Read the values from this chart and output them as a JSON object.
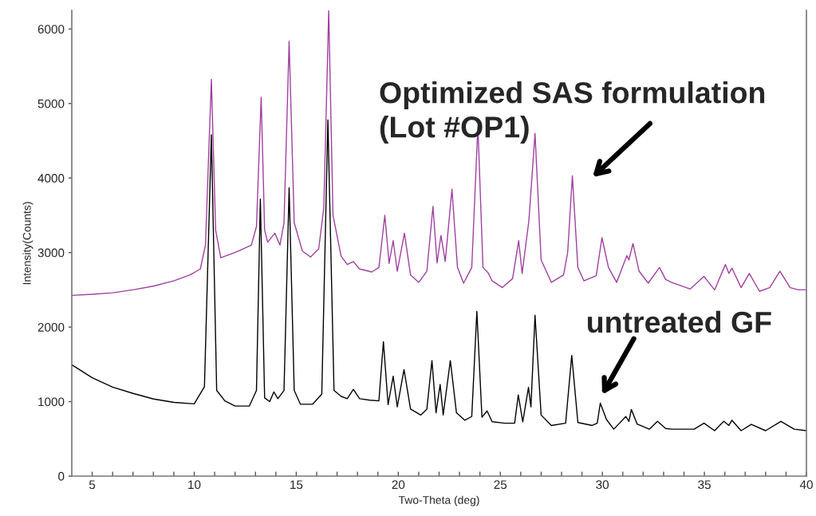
{
  "chart_data": {
    "type": "line",
    "xlabel": "Two-Theta (deg)",
    "ylabel": "Intensity(Counts)",
    "xlim": [
      4,
      40
    ],
    "ylim": [
      0,
      6250
    ],
    "xticks": [
      5,
      {
        "value": 6,
        "label": null
      },
      {
        "value": 7,
        "label": null
      },
      {
        "value": 8,
        "label": null
      },
      {
        "value": 9,
        "label": null
      },
      10,
      {
        "value": 11,
        "label": null
      },
      {
        "value": 12,
        "label": null
      },
      {
        "value": 13,
        "label": null
      },
      {
        "value": 14,
        "label": null
      },
      15,
      {
        "value": 16,
        "label": null
      },
      {
        "value": 17,
        "label": null
      },
      {
        "value": 18,
        "label": null
      },
      {
        "value": 19,
        "label": null
      },
      20,
      {
        "value": 21,
        "label": null
      },
      {
        "value": 22,
        "label": null
      },
      {
        "value": 23,
        "label": null
      },
      {
        "value": 24,
        "label": null
      },
      25,
      {
        "value": 26,
        "label": null
      },
      {
        "value": 27,
        "label": null
      },
      {
        "value": 28,
        "label": null
      },
      {
        "value": 29,
        "label": null
      },
      30,
      {
        "value": 31,
        "label": null
      },
      {
        "value": 32,
        "label": null
      },
      {
        "value": 33,
        "label": null
      },
      {
        "value": 34,
        "label": null
      },
      35,
      {
        "value": 36,
        "label": null
      },
      {
        "value": 37,
        "label": null
      },
      {
        "value": 38,
        "label": null
      },
      {
        "value": 39,
        "label": null
      },
      40
    ],
    "yticks": [
      0,
      1000,
      2000,
      3000,
      4000,
      5000,
      6000
    ],
    "series": [
      {
        "color": "#a040a0",
        "x": [
          4,
          5,
          6,
          7,
          8,
          9,
          9.8,
          10.3,
          10.55,
          10.84,
          11.05,
          11.3,
          12,
          12.8,
          13.05,
          13.28,
          13.45,
          13.6,
          13.95,
          14.2,
          14.4,
          14.65,
          14.9,
          15.3,
          15.7,
          16.1,
          16.35,
          16.59,
          16.8,
          17.2,
          17.5,
          17.8,
          18.1,
          18.7,
          19.05,
          19.34,
          19.55,
          19.75,
          19.95,
          20.3,
          20.6,
          21.0,
          21.4,
          21.7,
          21.9,
          22.09,
          22.3,
          22.63,
          22.9,
          23.2,
          23.6,
          23.9,
          24.15,
          24.4,
          24.6,
          25.1,
          25.6,
          25.9,
          26.07,
          26.4,
          26.7,
          27.0,
          27.5,
          28.1,
          28.3,
          28.53,
          28.8,
          29.1,
          29.7,
          29.98,
          30.3,
          30.7,
          31.2,
          31.3,
          31.5,
          31.8,
          32.25,
          32.8,
          33.1,
          33.4,
          34.3,
          34.98,
          35.5,
          36.03,
          36.2,
          36.35,
          36.8,
          37.2,
          37.7,
          38.2,
          38.7,
          39.2,
          39.6,
          40
        ],
        "values": [
          2425,
          2440,
          2460,
          2500,
          2550,
          2620,
          2700,
          2780,
          3100,
          5325,
          3300,
          2930,
          3000,
          3100,
          3350,
          5085,
          3300,
          3140,
          3260,
          3100,
          3400,
          5835,
          3400,
          3020,
          2940,
          3050,
          3600,
          6250,
          3500,
          2950,
          2840,
          2880,
          2780,
          2740,
          2800,
          3500,
          2855,
          3160,
          2750,
          3260,
          2700,
          2600,
          2750,
          3620,
          2860,
          3230,
          2880,
          3850,
          2800,
          2590,
          2800,
          4700,
          2800,
          2730,
          2620,
          2530,
          2650,
          3160,
          2720,
          3430,
          4600,
          2900,
          2600,
          2700,
          3000,
          4030,
          2800,
          2620,
          2690,
          3200,
          2800,
          2600,
          2960,
          2900,
          3120,
          2750,
          2590,
          2800,
          2640,
          2600,
          2510,
          2680,
          2500,
          2840,
          2720,
          2790,
          2530,
          2720,
          2480,
          2530,
          2750,
          2530,
          2500,
          2500
        ]
      },
      {
        "color": "#000000",
        "x": [
          4,
          5,
          6,
          7,
          8,
          9,
          10,
          10.5,
          10.84,
          11.1,
          11.5,
          12,
          12.7,
          13.05,
          13.24,
          13.45,
          13.7,
          13.9,
          14.1,
          14.4,
          14.65,
          14.9,
          15.2,
          15.8,
          16.25,
          16.55,
          16.85,
          17.2,
          17.5,
          17.8,
          18.1,
          18.6,
          19.05,
          19.27,
          19.5,
          19.75,
          19.95,
          20.28,
          20.6,
          21.1,
          21.4,
          21.65,
          21.85,
          22.05,
          22.2,
          22.55,
          22.85,
          23.26,
          23.6,
          23.85,
          24.1,
          24.35,
          24.6,
          25.2,
          25.7,
          25.88,
          26.1,
          26.38,
          26.5,
          26.7,
          27.0,
          27.5,
          28.2,
          28.5,
          28.8,
          29.5,
          29.75,
          29.9,
          30.2,
          30.56,
          31.15,
          31.3,
          31.42,
          31.7,
          32.3,
          32.7,
          33.1,
          33.4,
          34.5,
          34.98,
          35.5,
          35.95,
          36.2,
          36.35,
          36.8,
          37.3,
          38.0,
          38.75,
          39.4,
          40
        ],
        "values": [
          1495,
          1320,
          1195,
          1110,
          1035,
          990,
          970,
          1200,
          4580,
          1150,
          1010,
          940,
          940,
          1150,
          3720,
          1050,
          1000,
          1130,
          1040,
          1150,
          3870,
          1150,
          965,
          965,
          1100,
          4780,
          1150,
          1070,
          1040,
          1165,
          1040,
          1020,
          1010,
          1805,
          960,
          1340,
          930,
          1430,
          900,
          820,
          900,
          1550,
          850,
          1230,
          820,
          1550,
          850,
          750,
          800,
          2210,
          790,
          875,
          730,
          710,
          710,
          1090,
          730,
          1190,
          930,
          2160,
          820,
          680,
          710,
          1620,
          720,
          680,
          710,
          980,
          760,
          630,
          800,
          735,
          895,
          700,
          630,
          735,
          640,
          630,
          630,
          710,
          610,
          735,
          680,
          750,
          610,
          695,
          610,
          735,
          630,
          610
        ]
      }
    ],
    "annotations": [
      "Optimized SAS formulation\n(Lot #OP1)",
      "untreated GF"
    ]
  }
}
